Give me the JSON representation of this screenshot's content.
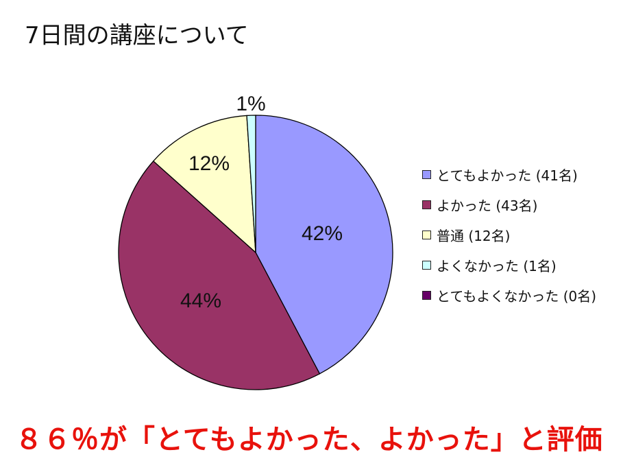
{
  "title": "7日間の講座について",
  "headline": "８６％が「とてもよかった、よかった」と評価",
  "chart_data": {
    "type": "pie",
    "title": "7日間の講座について",
    "start_angle": "12 o'clock, clockwise",
    "categories": [
      "とてもよかった",
      "よかった",
      "普通",
      "よくなかった",
      "とてもよくなかった"
    ],
    "counts": [
      41,
      43,
      12,
      1,
      0
    ],
    "values_percent": [
      42,
      44,
      12,
      1,
      0
    ],
    "slice_labels": [
      "42%",
      "44%",
      "12%",
      "1%",
      ""
    ],
    "colors": [
      "#9999ff",
      "#993366",
      "#ffffcc",
      "#ccffff",
      "#660066"
    ],
    "legend_position": "right",
    "legend": [
      {
        "label": "とてもよかった (41名)",
        "color": "#9999ff"
      },
      {
        "label": "よかった (43名)",
        "color": "#993366"
      },
      {
        "label": "普通 (12名)",
        "color": "#ffffcc"
      },
      {
        "label": "よくなかった (1名)",
        "color": "#ccffff"
      },
      {
        "label": "とてもよくなかった (0名)",
        "color": "#660066"
      }
    ]
  }
}
